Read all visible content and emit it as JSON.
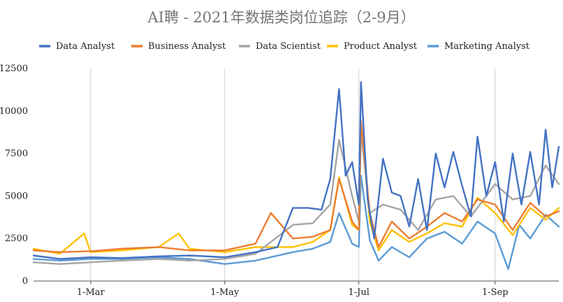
{
  "chart_data": {
    "type": "line",
    "title": "AI聘 - 2021年数据类岗位追踪（2-9月）",
    "xlabel": "",
    "ylabel": "",
    "x_range": [
      "2021-02-03",
      "2021-09-30"
    ],
    "ylim": [
      0,
      12500
    ],
    "y_ticks": [
      0,
      2500,
      5000,
      7500,
      10000,
      12500
    ],
    "y_tick_labels": [
      "0",
      "2500",
      "5000",
      "7500",
      "10000",
      "12500"
    ],
    "x_ticks": [
      "2021-03-01",
      "2021-05-01",
      "2021-07-01",
      "2021-09-01"
    ],
    "x_tick_labels": [
      "1-Mar",
      "1-May",
      "1-Jul",
      "1-Sep"
    ],
    "grid": "vertical",
    "legend_position": "top",
    "series": [
      {
        "name": "Data Analyst",
        "color": "#4472C4",
        "points": [
          [
            "2021-02-03",
            1500
          ],
          [
            "2021-02-15",
            1300
          ],
          [
            "2021-03-01",
            1400
          ],
          [
            "2021-03-15",
            1350
          ],
          [
            "2021-04-01",
            1450
          ],
          [
            "2021-04-15",
            1500
          ],
          [
            "2021-05-01",
            1400
          ],
          [
            "2021-05-15",
            1700
          ],
          [
            "2021-05-25",
            2000
          ],
          [
            "2021-06-01",
            4300
          ],
          [
            "2021-06-08",
            4300
          ],
          [
            "2021-06-14",
            4200
          ],
          [
            "2021-06-18",
            6000
          ],
          [
            "2021-06-22",
            11300
          ],
          [
            "2021-06-25",
            6200
          ],
          [
            "2021-06-28",
            7000
          ],
          [
            "2021-07-01",
            4500
          ],
          [
            "2021-07-02",
            11700
          ],
          [
            "2021-07-05",
            4800
          ],
          [
            "2021-07-08",
            2500
          ],
          [
            "2021-07-12",
            7200
          ],
          [
            "2021-07-16",
            5200
          ],
          [
            "2021-07-20",
            5000
          ],
          [
            "2021-07-24",
            3200
          ],
          [
            "2021-07-28",
            6000
          ],
          [
            "2021-08-01",
            3000
          ],
          [
            "2021-08-05",
            7500
          ],
          [
            "2021-08-09",
            5500
          ],
          [
            "2021-08-13",
            7600
          ],
          [
            "2021-08-17",
            5600
          ],
          [
            "2021-08-21",
            3800
          ],
          [
            "2021-08-24",
            8500
          ],
          [
            "2021-08-28",
            5000
          ],
          [
            "2021-09-01",
            7000
          ],
          [
            "2021-09-05",
            3500
          ],
          [
            "2021-09-09",
            7500
          ],
          [
            "2021-09-13",
            4500
          ],
          [
            "2021-09-17",
            7600
          ],
          [
            "2021-09-21",
            4500
          ],
          [
            "2021-09-24",
            8900
          ],
          [
            "2021-09-27",
            5500
          ],
          [
            "2021-09-30",
            7900
          ]
        ]
      },
      {
        "name": "Business Analyst",
        "color": "#ED7D31",
        "points": [
          [
            "2021-02-03",
            1800
          ],
          [
            "2021-02-15",
            1700
          ],
          [
            "2021-03-01",
            1750
          ],
          [
            "2021-03-15",
            1900
          ],
          [
            "2021-04-01",
            2000
          ],
          [
            "2021-04-15",
            1800
          ],
          [
            "2021-05-01",
            1800
          ],
          [
            "2021-05-15",
            2200
          ],
          [
            "2021-05-22",
            4000
          ],
          [
            "2021-06-01",
            2500
          ],
          [
            "2021-06-10",
            2600
          ],
          [
            "2021-06-18",
            3000
          ],
          [
            "2021-06-22",
            6000
          ],
          [
            "2021-06-28",
            3500
          ],
          [
            "2021-07-01",
            3000
          ],
          [
            "2021-07-02",
            9400
          ],
          [
            "2021-07-06",
            4000
          ],
          [
            "2021-07-10",
            2000
          ],
          [
            "2021-07-16",
            3500
          ],
          [
            "2021-07-24",
            2500
          ],
          [
            "2021-08-01",
            3200
          ],
          [
            "2021-08-09",
            4000
          ],
          [
            "2021-08-17",
            3500
          ],
          [
            "2021-08-24",
            4800
          ],
          [
            "2021-09-01",
            4500
          ],
          [
            "2021-09-09",
            3000
          ],
          [
            "2021-09-17",
            4600
          ],
          [
            "2021-09-24",
            3800
          ],
          [
            "2021-09-30",
            4100
          ]
        ]
      },
      {
        "name": "Data Scientist",
        "color": "#A5A5A5",
        "points": [
          [
            "2021-02-03",
            1100
          ],
          [
            "2021-02-15",
            1000
          ],
          [
            "2021-03-01",
            1100
          ],
          [
            "2021-03-15",
            1200
          ],
          [
            "2021-04-01",
            1300
          ],
          [
            "2021-04-15",
            1200
          ],
          [
            "2021-05-01",
            1300
          ],
          [
            "2021-05-15",
            1600
          ],
          [
            "2021-06-01",
            3300
          ],
          [
            "2021-06-10",
            3400
          ],
          [
            "2021-06-18",
            4500
          ],
          [
            "2021-06-22",
            8300
          ],
          [
            "2021-06-28",
            5000
          ],
          [
            "2021-07-01",
            3500
          ],
          [
            "2021-07-02",
            8800
          ],
          [
            "2021-07-06",
            4000
          ],
          [
            "2021-07-12",
            4500
          ],
          [
            "2021-07-20",
            4200
          ],
          [
            "2021-07-28",
            3000
          ],
          [
            "2021-08-05",
            4800
          ],
          [
            "2021-08-13",
            5000
          ],
          [
            "2021-08-21",
            3800
          ],
          [
            "2021-09-01",
            5700
          ],
          [
            "2021-09-09",
            4800
          ],
          [
            "2021-09-17",
            5000
          ],
          [
            "2021-09-24",
            6800
          ],
          [
            "2021-09-30",
            5700
          ]
        ]
      },
      {
        "name": "Product Analyst",
        "color": "#FFC000",
        "points": [
          [
            "2021-02-03",
            1900
          ],
          [
            "2021-02-15",
            1600
          ],
          [
            "2021-02-26",
            2800
          ],
          [
            "2021-03-01",
            1700
          ],
          [
            "2021-03-15",
            1800
          ],
          [
            "2021-04-01",
            2000
          ],
          [
            "2021-04-10",
            2800
          ],
          [
            "2021-04-15",
            1900
          ],
          [
            "2021-05-01",
            1700
          ],
          [
            "2021-05-15",
            2000
          ],
          [
            "2021-06-01",
            2000
          ],
          [
            "2021-06-10",
            2300
          ],
          [
            "2021-06-18",
            3000
          ],
          [
            "2021-06-22",
            6100
          ],
          [
            "2021-06-28",
            3300
          ],
          [
            "2021-07-01",
            3000
          ],
          [
            "2021-07-02",
            9400
          ],
          [
            "2021-07-06",
            3500
          ],
          [
            "2021-07-10",
            1800
          ],
          [
            "2021-07-16",
            3000
          ],
          [
            "2021-07-24",
            2300
          ],
          [
            "2021-08-01",
            2800
          ],
          [
            "2021-08-09",
            3400
          ],
          [
            "2021-08-17",
            3200
          ],
          [
            "2021-08-24",
            4900
          ],
          [
            "2021-09-01",
            4000
          ],
          [
            "2021-09-09",
            2700
          ],
          [
            "2021-09-17",
            4300
          ],
          [
            "2021-09-24",
            3600
          ],
          [
            "2021-09-30",
            4300
          ]
        ]
      },
      {
        "name": "Marketing Analyst",
        "color": "#5B9BD5",
        "points": [
          [
            "2021-02-03",
            1300
          ],
          [
            "2021-02-15",
            1200
          ],
          [
            "2021-03-01",
            1300
          ],
          [
            "2021-03-15",
            1300
          ],
          [
            "2021-04-01",
            1400
          ],
          [
            "2021-04-15",
            1300
          ],
          [
            "2021-05-01",
            1000
          ],
          [
            "2021-05-15",
            1200
          ],
          [
            "2021-06-01",
            1700
          ],
          [
            "2021-06-10",
            1900
          ],
          [
            "2021-06-18",
            2300
          ],
          [
            "2021-06-22",
            4000
          ],
          [
            "2021-06-28",
            2200
          ],
          [
            "2021-07-01",
            2000
          ],
          [
            "2021-07-02",
            6200
          ],
          [
            "2021-07-06",
            2400
          ],
          [
            "2021-07-10",
            1200
          ],
          [
            "2021-07-16",
            2000
          ],
          [
            "2021-07-24",
            1400
          ],
          [
            "2021-08-01",
            2500
          ],
          [
            "2021-08-09",
            2900
          ],
          [
            "2021-08-17",
            2200
          ],
          [
            "2021-08-24",
            3500
          ],
          [
            "2021-09-01",
            2800
          ],
          [
            "2021-09-07",
            700
          ],
          [
            "2021-09-12",
            3300
          ],
          [
            "2021-09-17",
            2500
          ],
          [
            "2021-09-24",
            3900
          ],
          [
            "2021-09-30",
            3200
          ]
        ]
      }
    ]
  }
}
